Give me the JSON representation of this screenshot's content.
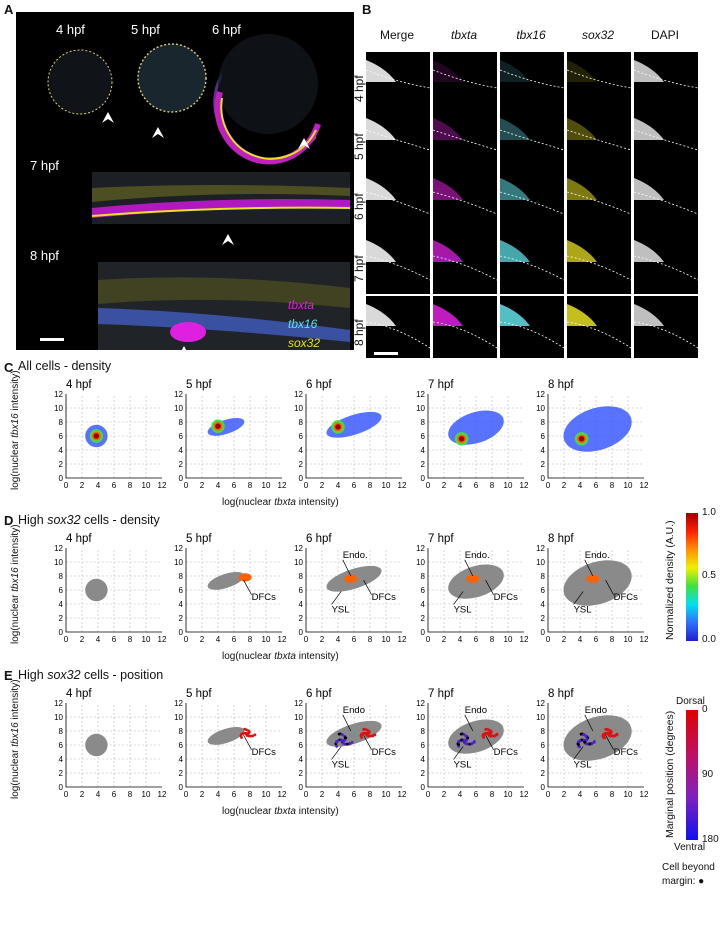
{
  "panel_letters": {
    "a": "A",
    "b": "B",
    "c": "C",
    "d": "D",
    "e": "E"
  },
  "panel_a": {
    "stage_labels": [
      "4 hpf",
      "5 hpf",
      "6 hpf",
      "7 hpf",
      "8 hpf"
    ],
    "legend": [
      {
        "text": "tbxta",
        "color": "#e020e0"
      },
      {
        "text": "tbx16",
        "color": "#60e0e8"
      },
      {
        "text": "sox32",
        "color": "#e8e020"
      }
    ]
  },
  "panel_b": {
    "columns": [
      "Merge",
      "tbxta",
      "tbx16",
      "sox32",
      "DAPI"
    ],
    "rows": [
      "4 hpf",
      "5 hpf",
      "6 hpf",
      "7 hpf",
      "8 hpf"
    ]
  },
  "sections": {
    "c_title": "All cells - density",
    "d_title_pre": "High ",
    "d_title_gene": "sox32",
    "d_title_post": " cells - density",
    "e_title_pre": "High ",
    "e_title_gene": "sox32",
    "e_title_post": " cells - position"
  },
  "axes": {
    "x_label_pre": "log(nuclear ",
    "x_label_gene": "tbxta",
    "x_label_post": " intensity)",
    "y_label_pre": "log(nuclear ",
    "y_label_gene": "tbx16",
    "y_label_post": " intensity)",
    "ticks": [
      "0",
      "2",
      "4",
      "6",
      "8",
      "10",
      "12"
    ]
  },
  "annotations": {
    "dfcs": "DFCs",
    "endo_d": "Endo.",
    "endo_e": "Endo",
    "ysl": "YSL"
  },
  "colorbar_density": {
    "title": "Normalized density (A.U.)",
    "ticks": [
      "1.0",
      "0.5",
      "0.0"
    ]
  },
  "colorbar_position": {
    "top": "Dorsal",
    "bottom": "Ventral",
    "title": "Marginal position (degrees)",
    "ticks": [
      "0",
      "90",
      "180"
    ],
    "beyond": "Cell beyond",
    "beyond2": "margin: ●"
  },
  "chart_data": [
    {
      "type": "scatter",
      "title": "4 hpf",
      "section": "C",
      "xlim": [
        0,
        12
      ],
      "ylim": [
        0,
        12
      ],
      "grid": true,
      "density_peak": {
        "x": 3.8,
        "y": 6.0
      }
    },
    {
      "type": "scatter",
      "title": "5 hpf",
      "section": "C",
      "xlim": [
        0,
        12
      ],
      "ylim": [
        0,
        12
      ],
      "grid": true,
      "density_peak": {
        "x": 4.0,
        "y": 7.4
      }
    },
    {
      "type": "scatter",
      "title": "6 hpf",
      "section": "C",
      "xlim": [
        0,
        12
      ],
      "ylim": [
        0,
        12
      ],
      "grid": true,
      "density_peak": {
        "x": 4.0,
        "y": 7.3
      }
    },
    {
      "type": "scatter",
      "title": "7 hpf",
      "section": "C",
      "xlim": [
        0,
        12
      ],
      "ylim": [
        0,
        12
      ],
      "grid": true,
      "density_peak": {
        "x": 4.2,
        "y": 5.6
      }
    },
    {
      "type": "scatter",
      "title": "8 hpf",
      "section": "C",
      "xlim": [
        0,
        12
      ],
      "ylim": [
        0,
        12
      ],
      "grid": true,
      "density_peak": {
        "x": 4.2,
        "y": 5.6
      }
    },
    {
      "type": "scatter",
      "title": "4 hpf",
      "section": "D",
      "xlim": [
        0,
        12
      ],
      "ylim": [
        0,
        12
      ],
      "grid": true
    },
    {
      "type": "scatter",
      "title": "5 hpf",
      "section": "D",
      "xlim": [
        0,
        12
      ],
      "ylim": [
        0,
        12
      ],
      "grid": true,
      "annotations": [
        "DFCs"
      ]
    },
    {
      "type": "scatter",
      "title": "6 hpf",
      "section": "D",
      "xlim": [
        0,
        12
      ],
      "ylim": [
        0,
        12
      ],
      "grid": true,
      "annotations": [
        "Endo.",
        "DFCs",
        "YSL"
      ]
    },
    {
      "type": "scatter",
      "title": "7 hpf",
      "section": "D",
      "xlim": [
        0,
        12
      ],
      "ylim": [
        0,
        12
      ],
      "grid": true,
      "annotations": [
        "Endo.",
        "YSL",
        "DFCs"
      ]
    },
    {
      "type": "scatter",
      "title": "8 hpf",
      "section": "D",
      "xlim": [
        0,
        12
      ],
      "ylim": [
        0,
        12
      ],
      "grid": true,
      "annotations": [
        "Endo.",
        "YSL",
        "DFCs"
      ]
    },
    {
      "type": "scatter",
      "title": "4 hpf",
      "section": "E",
      "xlim": [
        0,
        12
      ],
      "ylim": [
        0,
        12
      ],
      "grid": true
    },
    {
      "type": "scatter",
      "title": "5 hpf",
      "section": "E",
      "xlim": [
        0,
        12
      ],
      "ylim": [
        0,
        12
      ],
      "grid": true,
      "annotations": [
        "DFCs"
      ]
    },
    {
      "type": "scatter",
      "title": "6 hpf",
      "section": "E",
      "xlim": [
        0,
        12
      ],
      "ylim": [
        0,
        12
      ],
      "grid": true,
      "annotations": [
        "Endo",
        "YSL",
        "DFCs"
      ]
    },
    {
      "type": "scatter",
      "title": "7 hpf",
      "section": "E",
      "xlim": [
        0,
        12
      ],
      "ylim": [
        0,
        12
      ],
      "grid": true,
      "annotations": [
        "Endo",
        "YSL",
        "DFCs"
      ]
    },
    {
      "type": "scatter",
      "title": "8 hpf",
      "section": "E",
      "xlim": [
        0,
        12
      ],
      "ylim": [
        0,
        12
      ],
      "grid": true,
      "annotations": [
        "Endo",
        "YSL",
        "DFCs"
      ]
    }
  ]
}
